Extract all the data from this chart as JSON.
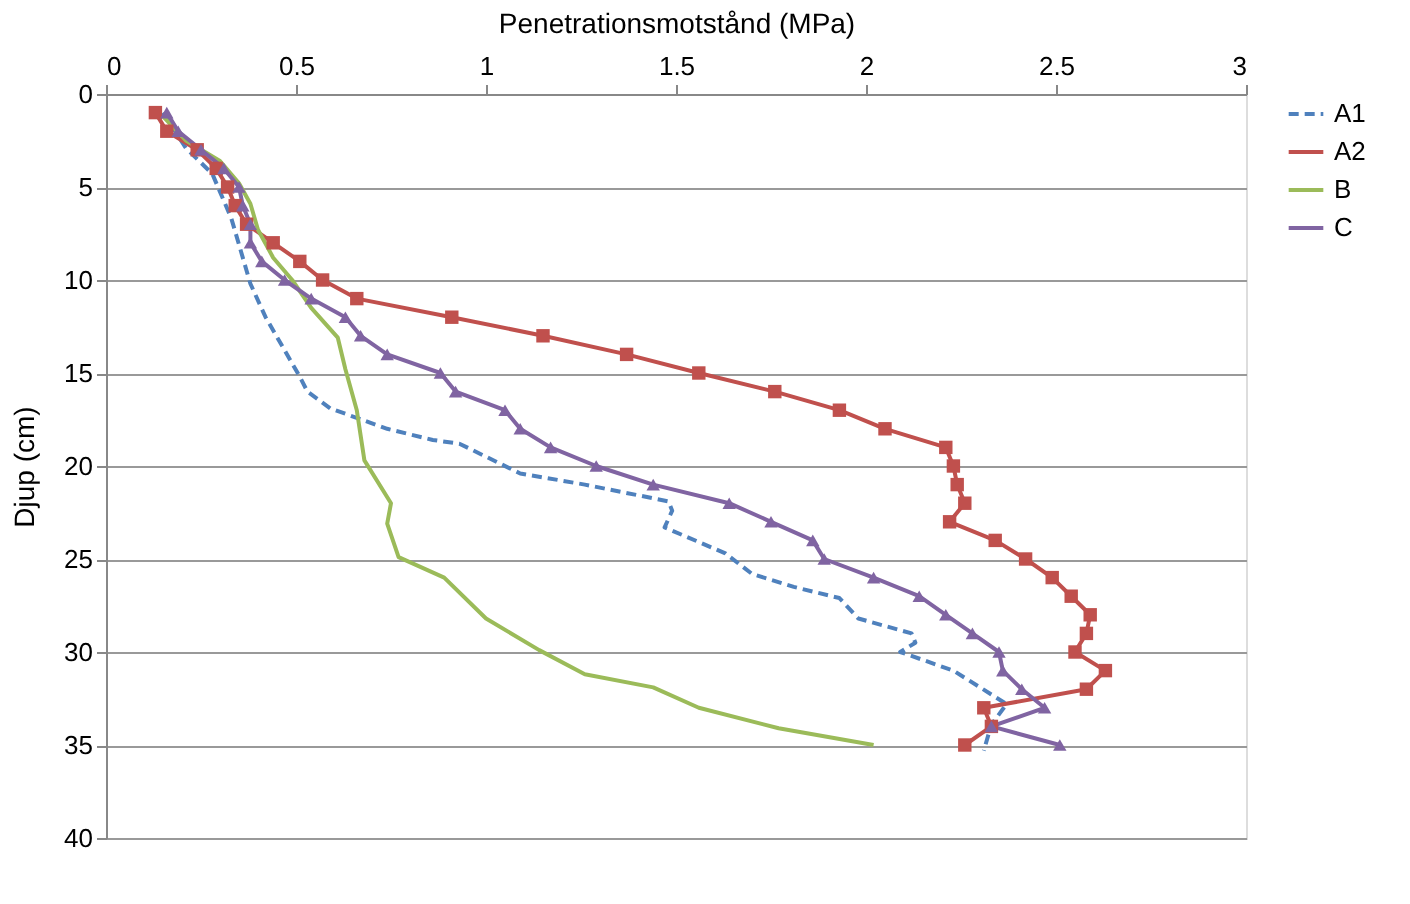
{
  "chart_data": {
    "type": "line",
    "xlabel": "Penetrationsmotstånd (MPa)",
    "ylabel": "Djup (cm)",
    "xlim": [
      0,
      3
    ],
    "xticks": [
      0,
      0.5,
      1,
      1.5,
      2,
      2.5,
      3
    ],
    "ylim": [
      40,
      0
    ],
    "yticks": [
      0,
      5,
      10,
      15,
      20,
      25,
      30,
      35,
      40
    ],
    "grid": "y",
    "legend": "right",
    "series": [
      {
        "name": "A1",
        "color": "#4f81bd",
        "line_style": "dashed",
        "marker": "none",
        "x": [
          0.15,
          0.21,
          0.28,
          0.33,
          0.37,
          0.38,
          0.42,
          0.51,
          0.53,
          0.59,
          0.74,
          0.86,
          0.93,
          1.09,
          1.26,
          1.48,
          1.49,
          1.47,
          1.63,
          1.7,
          1.81,
          1.93,
          1.98,
          2.12,
          2.13,
          2.09,
          2.23,
          2.37,
          2.33,
          2.31
        ],
        "values": [
          1,
          2.9,
          4.3,
          6.7,
          9.5,
          10.2,
          12,
          15.2,
          16,
          16.9,
          18,
          18.6,
          18.8,
          20.4,
          21,
          21.9,
          22.4,
          23.3,
          24.7,
          25.8,
          26.5,
          27.1,
          28.2,
          29,
          29.5,
          30,
          31,
          32.8,
          33.9,
          35.3
        ]
      },
      {
        "name": "A2",
        "color": "#c0504d",
        "line_style": "solid",
        "marker": "square",
        "x": [
          0.13,
          0.16,
          0.24,
          0.29,
          0.32,
          0.34,
          0.37,
          0.44,
          0.51,
          0.57,
          0.66,
          0.91,
          1.15,
          1.37,
          1.56,
          1.76,
          1.93,
          2.05,
          2.21,
          2.23,
          2.24,
          2.26,
          2.22,
          2.34,
          2.42,
          2.49,
          2.54,
          2.59,
          2.58,
          2.55,
          2.63,
          2.58,
          2.31,
          2.33,
          2.26
        ],
        "values": [
          1,
          2,
          3,
          4,
          5,
          6,
          7,
          8,
          9,
          10,
          11,
          12,
          13,
          14,
          15,
          16,
          17,
          18,
          19,
          20,
          21,
          22,
          23,
          24,
          25,
          26,
          27,
          28,
          29,
          30,
          31,
          32,
          33,
          34,
          35
        ]
      },
      {
        "name": "B",
        "color": "#9bbb59",
        "line_style": "solid",
        "marker": "none",
        "x": [
          0.15,
          0.21,
          0.3,
          0.35,
          0.38,
          0.4,
          0.44,
          0.49,
          0.54,
          0.61,
          0.63,
          0.66,
          0.68,
          0.75,
          0.74,
          0.77,
          0.89,
          1.0,
          1.14,
          1.26,
          1.44,
          1.56,
          1.77,
          2.02
        ],
        "values": [
          1.2,
          2.5,
          3.6,
          4.8,
          5.9,
          7.3,
          8.8,
          10,
          11.5,
          13.1,
          14.8,
          17,
          19.7,
          22,
          23.1,
          24.9,
          26,
          28.2,
          29.9,
          31.2,
          31.9,
          33,
          34.1,
          35
        ]
      },
      {
        "name": "C",
        "color": "#8064a2",
        "line_style": "solid",
        "marker": "triangle",
        "x": [
          0.16,
          0.19,
          0.25,
          0.31,
          0.35,
          0.36,
          0.38,
          0.38,
          0.41,
          0.47,
          0.54,
          0.63,
          0.67,
          0.74,
          0.88,
          0.92,
          1.05,
          1.09,
          1.17,
          1.29,
          1.44,
          1.64,
          1.75,
          1.86,
          1.89,
          2.02,
          2.14,
          2.21,
          2.28,
          2.35,
          2.36,
          2.41,
          2.47,
          2.33,
          2.51
        ],
        "values": [
          1,
          2,
          3,
          4,
          5,
          6,
          7,
          8,
          9,
          10,
          11,
          12,
          13,
          14,
          15,
          16,
          17,
          18,
          19,
          20,
          21,
          22,
          23,
          24,
          25,
          26,
          27,
          28,
          29,
          30,
          31,
          32,
          33,
          34,
          35
        ]
      }
    ]
  }
}
